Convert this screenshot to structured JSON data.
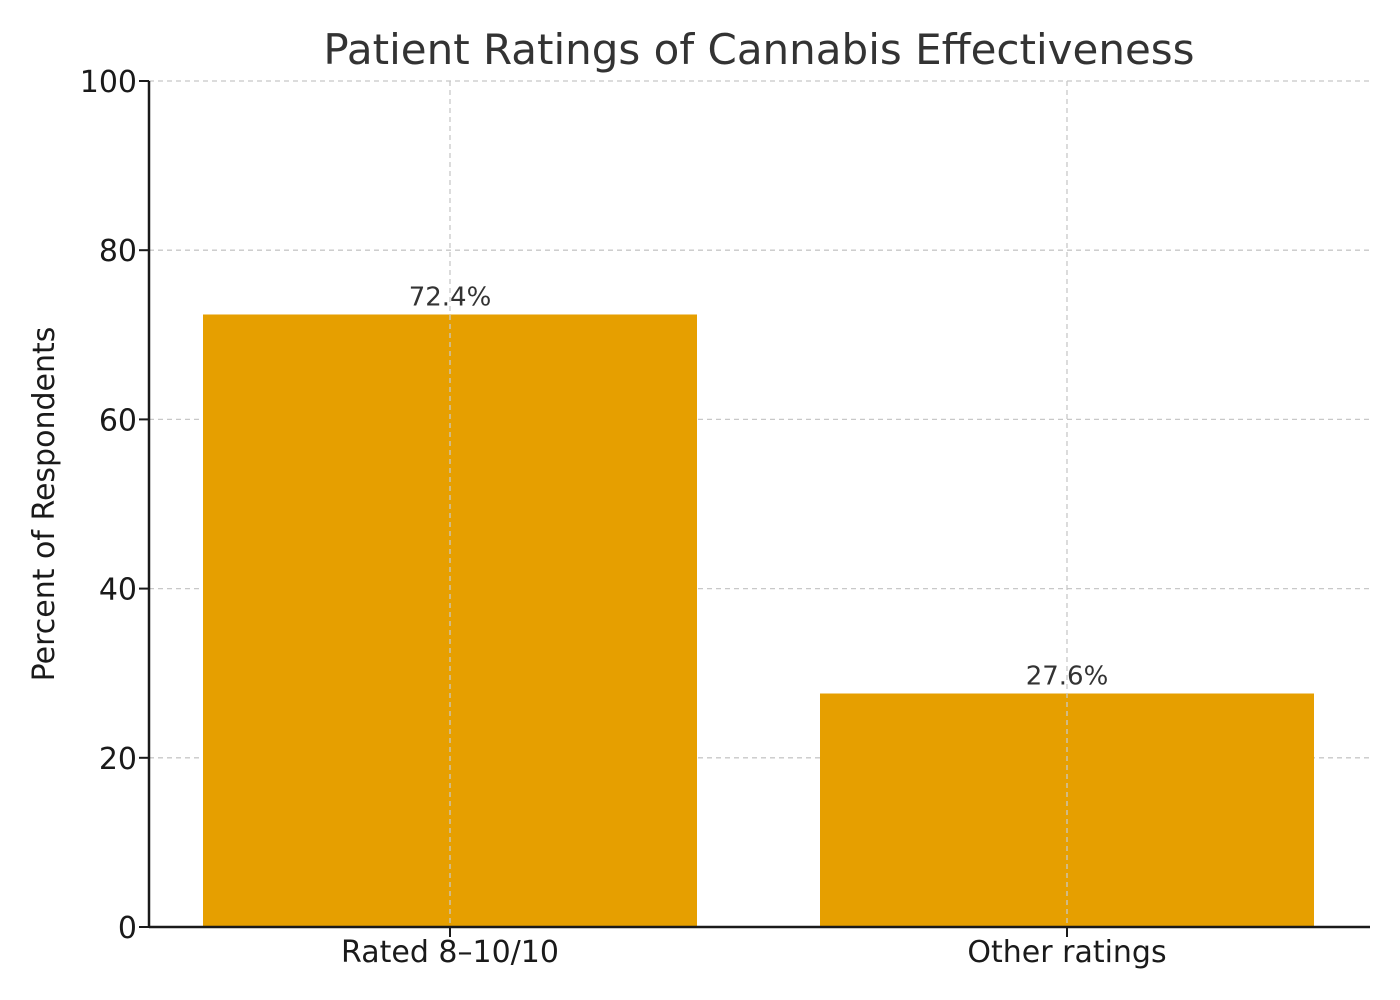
{
  "chart_data": {
    "type": "bar",
    "title": "Patient Ratings of Cannabis Effectiveness",
    "xlabel": "",
    "ylabel": "Percent of Respondents",
    "categories": [
      "Rated 8–10/10",
      "Other ratings"
    ],
    "values": [
      72.4,
      27.6
    ],
    "data_labels": [
      "72.4%",
      "27.6%"
    ],
    "ylim": [
      0,
      100
    ],
    "yticks": [
      0,
      20,
      40,
      60,
      80,
      100
    ],
    "grid": true,
    "bar_color": "#E69F00"
  }
}
